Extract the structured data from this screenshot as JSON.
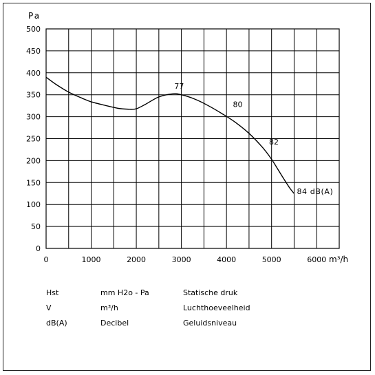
{
  "chart_data": {
    "type": "line",
    "ylabel": "Pa",
    "xlabel": "m³/h",
    "xlim": [
      0,
      6500
    ],
    "ylim": [
      0,
      500
    ],
    "x_ticks": [
      0,
      1000,
      2000,
      3000,
      4000,
      5000,
      6000
    ],
    "y_ticks": [
      0,
      50,
      100,
      150,
      200,
      250,
      300,
      350,
      400,
      450,
      500
    ],
    "grid": true,
    "series": [
      {
        "x": [
          0,
          200,
          500,
          800,
          1000,
          1300,
          1600,
          1850,
          2000,
          2200,
          2500,
          2800,
          3000,
          3300,
          3600,
          3900,
          4200,
          4500,
          4800,
          5000,
          5200,
          5400,
          5500
        ],
        "values": [
          390,
          375,
          356,
          342,
          334,
          326,
          319,
          317,
          318,
          328,
          345,
          352,
          350,
          340,
          325,
          307,
          287,
          262,
          230,
          203,
          170,
          138,
          125
        ]
      }
    ],
    "annotations": [
      {
        "text": "77",
        "x": 2950,
        "y": 354
      },
      {
        "text": "80",
        "x": 4250,
        "y": 313
      },
      {
        "text": "82",
        "x": 5050,
        "y": 227
      },
      {
        "text": "84 dB(A)",
        "x": 5500,
        "y": 130
      }
    ]
  },
  "legend": {
    "rows": [
      {
        "symbol": "Hst",
        "unit": "mm H2o - Pa",
        "description": "Statische druk"
      },
      {
        "symbol": "V",
        "unit": "m³/h",
        "description": "Luchthoeveelheid"
      },
      {
        "symbol": "dB(A)",
        "unit": "Decibel",
        "description": "Geluidsniveau"
      }
    ]
  }
}
